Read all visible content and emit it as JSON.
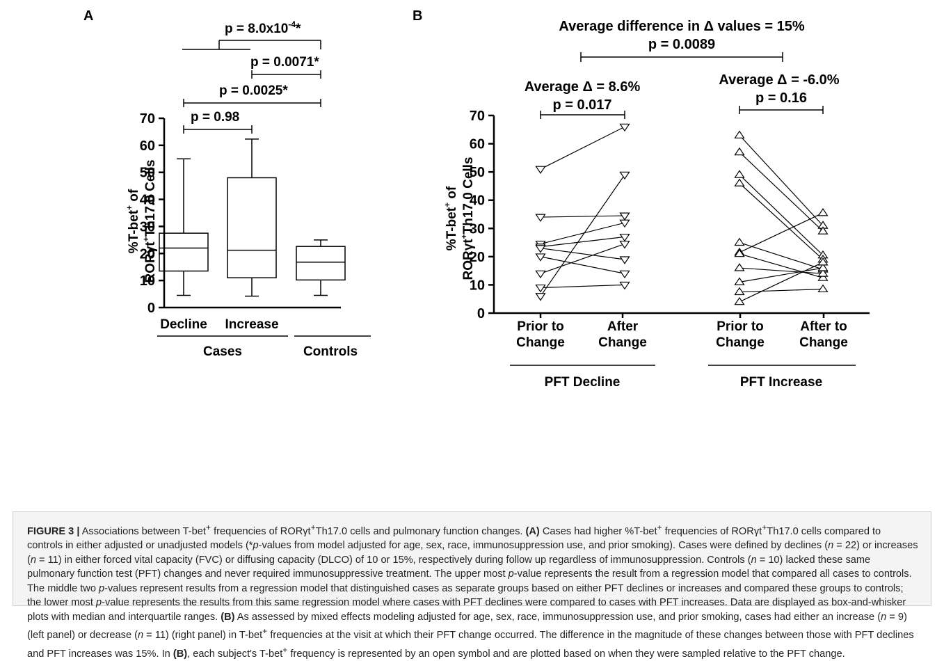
{
  "panelA": {
    "letter": "A",
    "ylabel_line1": "%T-bet",
    "ylabel_sup1": "+",
    "ylabel_of": " of",
    "ylabel_line2_a": "ROR",
    "ylabel_gamma": "γ",
    "ylabel_line2_b": "t",
    "ylabel_sup2": "+",
    "ylabel_line2_c": "Th17.0 Cells",
    "sig_overall_prefix": "p = 8.0x10",
    "sig_overall_exp": "-4",
    "sig_overall_suffix": "*",
    "sig_increase_vs_controls": "p = 0.0071*",
    "sig_decline_vs_controls": "p = 0.0025*",
    "sig_decline_vs_increase": "p = 0.98",
    "group_cases": "Cases",
    "group_controls": "Controls"
  },
  "panelB": {
    "letter": "B",
    "ylabel_line1": "%T-bet",
    "ylabel_sup1": "+",
    "ylabel_of": " of",
    "ylabel_line2_a": "ROR",
    "ylabel_gamma": "γ",
    "ylabel_line2_b": "t",
    "ylabel_sup2": "+",
    "ylabel_line2_c": "Th17.0 Cells",
    "top_title": "Average difference in Δ values = 15%",
    "top_p": "p =  0.0089",
    "left_avg": "Average Δ = 8.6%",
    "left_p": "p = 0.017",
    "right_avg": "Average Δ = -6.0%",
    "right_p": "p = 0.16",
    "left_x1_a": "Prior to",
    "left_x1_b": "Change",
    "left_x2_a": "After",
    "left_x2_b": "Change",
    "right_x1_a": "Prior to",
    "right_x1_b": "Change",
    "right_x2_a": "After to",
    "right_x2_b": "Change",
    "group_left": "PFT  Decline",
    "group_right": "PFT  Increase"
  },
  "caption": {
    "fig": "FIGURE 3 |",
    "s1": " Associations between T-bet",
    "s1sup": "+",
    "s2": " frequencies of ROR",
    "s2g": "γ",
    "s2t": "t",
    "s2sup": "+",
    "s3": "Th17.0 cells and pulmonary function changes. ",
    "labA": "(A)",
    "s4": " Cases had higher %T-bet",
    "s4sup": "+",
    "s5": " frequencies of ROR",
    "s5g": "γ",
    "s5t": "t",
    "s5sup": "+",
    "s6": "Th17.0 cells compared to controls in either adjusted or unadjusted models (*",
    "s6p": "p",
    "s7": "-values from model adjusted for age, sex, race, immunosuppression use, and prior smoking). Cases were defined by declines (",
    "s7n": "n",
    "s8": " = 22) or increases (",
    "s8n": "n",
    "s9": " = 11) in either forced vital capacity (FVC) or diffusing capacity (DLCO) of 10 or 15%, respectively during follow up regardless of immunosuppression. Controls (",
    "s9n": "n",
    "s10": " = 10) lacked these same pulmonary function test (PFT) changes and never required immunosuppressive treatment. The upper most ",
    "s10p": "p",
    "s11": "-value represents the result from a regression model that compared all cases to controls. The middle two ",
    "s11p": "p",
    "s12": "-values represent results from a regression model that distinguished cases as separate groups based on either PFT declines or increases and compared these groups to controls; the lower most ",
    "s12p": "p",
    "s13": "-value represents the results from this same regression model where cases with PFT declines were compared to cases with PFT increases. Data are displayed as box-and-whisker plots with median and interquartile ranges. ",
    "labB": "(B)",
    "s14": " As assessed by mixed effects modeling adjusted for age, sex, race, immunosuppression use, and prior smoking, cases had either an increase (",
    "s14n": "n",
    "s15": " = 9) (left panel) or decrease (",
    "s15n": "n",
    "s16": " = 11) (right panel) in T-bet",
    "s16sup": "+",
    "s17": " frequencies at the visit at which their PFT change occurred. The difference in the magnitude of these changes between those with PFT declines and PFT increases was 15%. In ",
    "labB2": "(B)",
    "s18": ", each subject's T-bet",
    "s18sup": "+",
    "s19": " frequency is represented by an open symbol and are plotted based on when they were sampled relative to the PFT change."
  },
  "chart_data": [
    {
      "type": "box",
      "panel": "A",
      "categories": [
        "Decline",
        "Increase",
        "Controls"
      ],
      "ylim": [
        0,
        70
      ],
      "yticks": [
        0,
        10,
        20,
        30,
        40,
        50,
        60,
        70
      ],
      "boxes": [
        {
          "min": 4.5,
          "q1": 13.5,
          "median": 22,
          "q3": 27.5,
          "max": 55
        },
        {
          "min": 4.2,
          "q1": 11,
          "median": 21.2,
          "q3": 48,
          "max": 62.3
        },
        {
          "min": 4.5,
          "q1": 10.2,
          "median": 16.8,
          "q3": 22.6,
          "max": 25
        }
      ]
    },
    {
      "type": "line",
      "panel": "B",
      "ylim": [
        0,
        70
      ],
      "yticks": [
        0,
        10,
        20,
        30,
        40,
        50,
        60,
        70
      ],
      "series": [
        {
          "group": "PFT  Decline",
          "marker": "triangle-down",
          "pairs": [
            [
              51,
              66
            ],
            [
              34,
              34.5
            ],
            [
              24.5,
              32
            ],
            [
              23.5,
              27
            ],
            [
              23,
              19
            ],
            [
              20,
              14
            ],
            [
              14,
              24.5
            ],
            [
              9,
              10
            ],
            [
              6,
              49
            ]
          ]
        },
        {
          "group": "PFT  Increase",
          "marker": "triangle-up",
          "pairs": [
            [
              63,
              31
            ],
            [
              57,
              29
            ],
            [
              49,
              20.5
            ],
            [
              46,
              19
            ],
            [
              25,
              15.5
            ],
            [
              21.5,
              35.5
            ],
            [
              21,
              12.5
            ],
            [
              16,
              14
            ],
            [
              11,
              16
            ],
            [
              7.5,
              8.5
            ],
            [
              4,
              18
            ]
          ]
        }
      ]
    }
  ]
}
